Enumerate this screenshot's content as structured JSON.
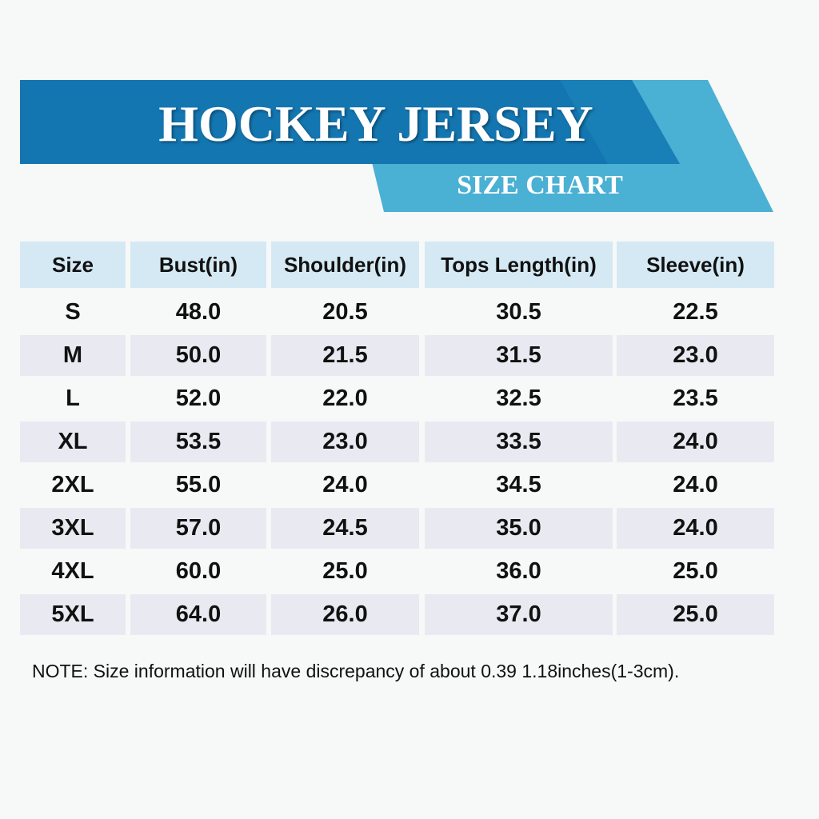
{
  "header": {
    "title": "HOCKEY JERSEY",
    "subtitle": "SIZE CHART"
  },
  "table": {
    "columns": [
      "Size",
      "Bust(in)",
      "Shoulder(in)",
      "Tops Length(in)",
      "Sleeve(in)"
    ],
    "rows": [
      [
        "S",
        "48.0",
        "20.5",
        "30.5",
        "22.5"
      ],
      [
        "M",
        "50.0",
        "21.5",
        "31.5",
        "23.0"
      ],
      [
        "L",
        "52.0",
        "22.0",
        "32.5",
        "23.5"
      ],
      [
        "XL",
        "53.5",
        "23.0",
        "33.5",
        "24.0"
      ],
      [
        "2XL",
        "55.0",
        "24.0",
        "34.5",
        "24.0"
      ],
      [
        "3XL",
        "57.0",
        "24.5",
        "35.0",
        "24.0"
      ],
      [
        "4XL",
        "60.0",
        "25.0",
        "36.0",
        "25.0"
      ],
      [
        "5XL",
        "64.0",
        "26.0",
        "37.0",
        "25.0"
      ]
    ]
  },
  "note": "NOTE: Size information will have discrepancy of about 0.39 1.18inches(1-3cm)."
}
